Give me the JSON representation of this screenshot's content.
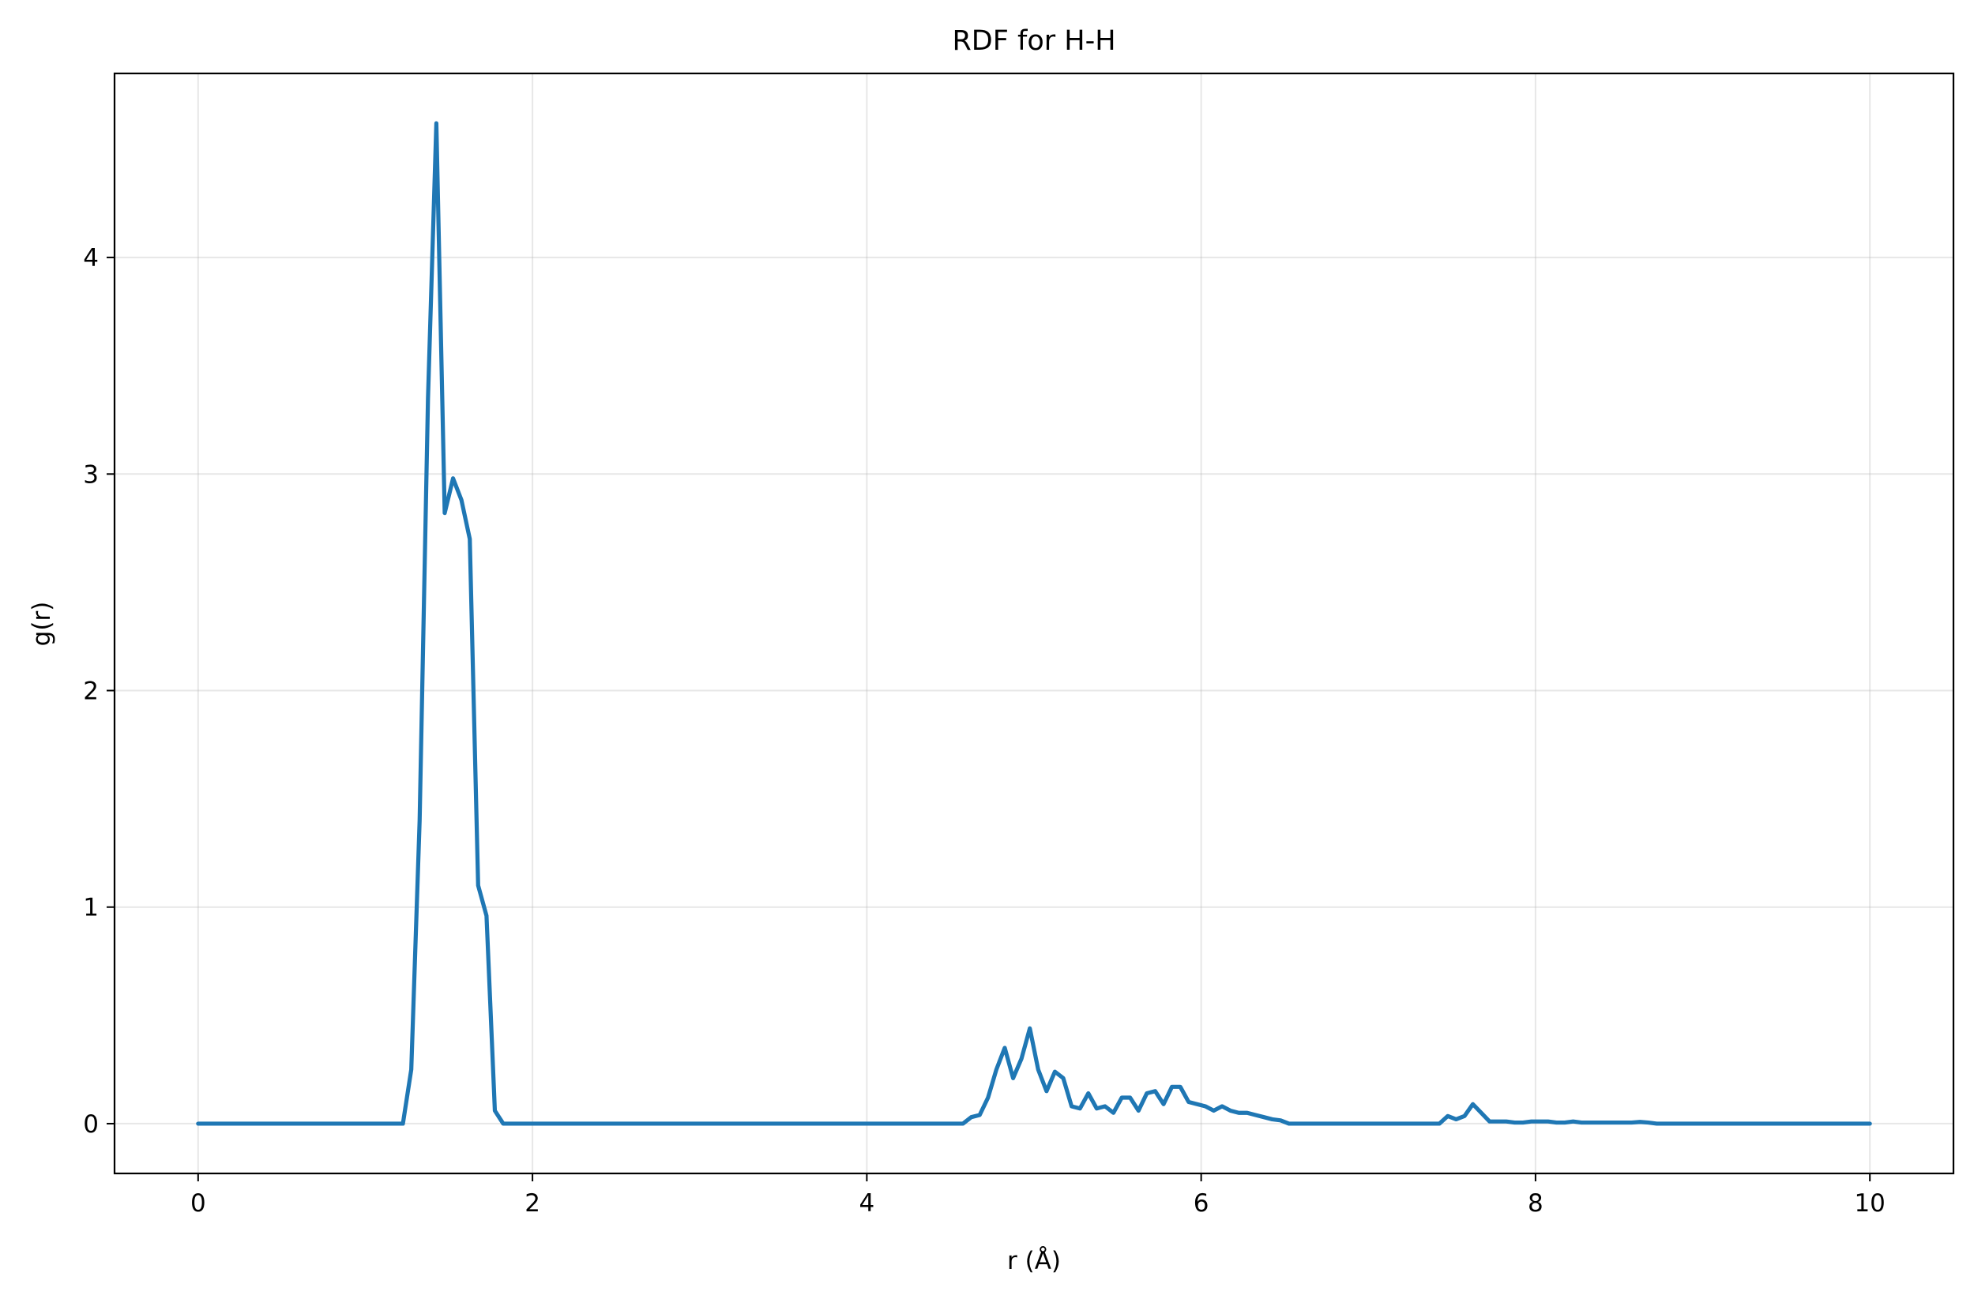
{
  "chart_data": {
    "type": "line",
    "title": "RDF for H-H",
    "xlabel": "r (Å)",
    "ylabel": "g(r)",
    "xlim": [
      -0.5,
      10.5
    ],
    "ylim": [
      -0.23,
      4.85
    ],
    "xticks": [
      0,
      2,
      4,
      6,
      8,
      10
    ],
    "yticks": [
      0,
      1,
      2,
      3,
      4
    ],
    "xtick_labels": [
      "0",
      "2",
      "4",
      "6",
      "8",
      "10"
    ],
    "ytick_labels": [
      "0",
      "1",
      "2",
      "3",
      "4"
    ],
    "grid": true,
    "line_color": "#1f77b4",
    "series": [
      {
        "x": [
          0,
          1.0,
          1.2,
          1.225,
          1.275,
          1.325,
          1.375,
          1.425,
          1.475,
          1.525,
          1.575,
          1.625,
          1.675,
          1.725,
          1.775,
          1.825,
          2.0,
          3.0,
          4.0,
          4.575,
          4.625,
          4.675,
          4.725,
          4.775,
          4.825,
          4.875,
          4.925,
          4.975,
          5.025,
          5.075,
          5.125,
          5.175,
          5.225,
          5.275,
          5.325,
          5.375,
          5.425,
          5.475,
          5.525,
          5.575,
          5.625,
          5.675,
          5.725,
          5.775,
          5.825,
          5.875,
          5.925,
          5.975,
          6.025,
          6.075,
          6.125,
          6.175,
          6.225,
          6.275,
          6.325,
          6.375,
          6.425,
          6.475,
          6.525,
          6.575,
          7.0,
          7.425,
          7.475,
          7.525,
          7.575,
          7.625,
          7.675,
          7.725,
          7.775,
          7.825,
          7.875,
          7.925,
          7.975,
          8.025,
          8.075,
          8.125,
          8.175,
          8.225,
          8.275,
          8.325,
          8.375,
          8.425,
          8.475,
          8.525,
          8.575,
          8.625,
          8.675,
          8.725,
          9.0,
          9.5,
          10.0
        ],
        "y": [
          0,
          0,
          0,
          0.0,
          0.25,
          1.4,
          3.35,
          4.62,
          2.82,
          2.98,
          2.88,
          2.7,
          1.1,
          0.96,
          0.06,
          0.0,
          0,
          0,
          0,
          0.0,
          0.03,
          0.04,
          0.12,
          0.25,
          0.35,
          0.21,
          0.3,
          0.44,
          0.25,
          0.15,
          0.24,
          0.21,
          0.08,
          0.07,
          0.14,
          0.07,
          0.08,
          0.05,
          0.12,
          0.12,
          0.06,
          0.14,
          0.15,
          0.09,
          0.17,
          0.17,
          0.1,
          0.09,
          0.08,
          0.06,
          0.08,
          0.06,
          0.05,
          0.05,
          0.04,
          0.03,
          0.02,
          0.015,
          0.0,
          0.0,
          0,
          0.0,
          0.035,
          0.02,
          0.035,
          0.09,
          0.05,
          0.01,
          0.01,
          0.01,
          0.005,
          0.005,
          0.01,
          0.01,
          0.01,
          0.005,
          0.005,
          0.01,
          0.005,
          0.005,
          0.005,
          0.005,
          0.005,
          0.005,
          0.005,
          0.008,
          0.005,
          0.0,
          0,
          0,
          0
        ]
      }
    ]
  }
}
